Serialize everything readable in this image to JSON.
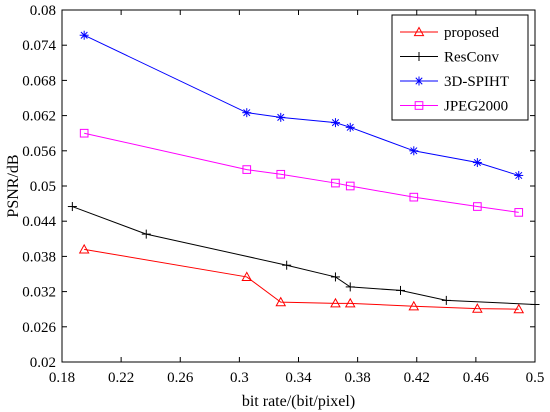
{
  "chart_data": {
    "type": "line",
    "title": "",
    "xlabel": "bit rate/(bit/pixel)",
    "ylabel": "PSNR/dB",
    "xlim": [
      0.18,
      0.5
    ],
    "ylim": [
      0.02,
      0.08
    ],
    "xticks": [
      0.18,
      0.22,
      0.26,
      0.3,
      0.34,
      0.38,
      0.42,
      0.46,
      0.5
    ],
    "xtick_labels": [
      "0.18",
      "0.22",
      "0.26",
      "0.3",
      "0.34",
      "0.38",
      "0.42",
      "0.46",
      "0.5"
    ],
    "yticks": [
      0.02,
      0.026,
      0.032,
      0.038,
      0.044,
      0.05,
      0.056,
      0.062,
      0.068,
      0.074,
      0.08
    ],
    "ytick_labels": [
      "0.02",
      "0.026",
      "0.032",
      "0.038",
      "0.044",
      "0.05",
      "0.056",
      "0.062",
      "0.068",
      "0.074",
      "0.08"
    ],
    "grid": false,
    "legend_position": "top-right",
    "series": [
      {
        "name": "proposed",
        "color": "#ff0000",
        "marker": "triangle",
        "x": [
          0.195,
          0.305,
          0.328,
          0.365,
          0.375,
          0.418,
          0.461,
          0.489
        ],
        "y": [
          0.0392,
          0.0345,
          0.0302,
          0.03,
          0.03,
          0.0295,
          0.0291,
          0.029
        ]
      },
      {
        "name": "ResConv",
        "color": "#000000",
        "marker": "plus",
        "x": [
          0.187,
          0.237,
          0.332,
          0.365,
          0.375,
          0.409,
          0.44,
          0.5
        ],
        "y": [
          0.0465,
          0.0418,
          0.0365,
          0.0345,
          0.0328,
          0.0322,
          0.0305,
          0.0298
        ]
      },
      {
        "name": "3D-SPIHT",
        "color": "#0000ff",
        "marker": "asterisk",
        "x": [
          0.195,
          0.305,
          0.328,
          0.365,
          0.375,
          0.418,
          0.461,
          0.489
        ],
        "y": [
          0.0757,
          0.0625,
          0.0617,
          0.0608,
          0.06,
          0.056,
          0.054,
          0.0518
        ]
      },
      {
        "name": "JPEG2000",
        "color": "#ff00ff",
        "marker": "square",
        "x": [
          0.195,
          0.305,
          0.328,
          0.365,
          0.375,
          0.418,
          0.461,
          0.489
        ],
        "y": [
          0.059,
          0.0528,
          0.052,
          0.0505,
          0.05,
          0.0481,
          0.0465,
          0.0455
        ]
      }
    ]
  }
}
